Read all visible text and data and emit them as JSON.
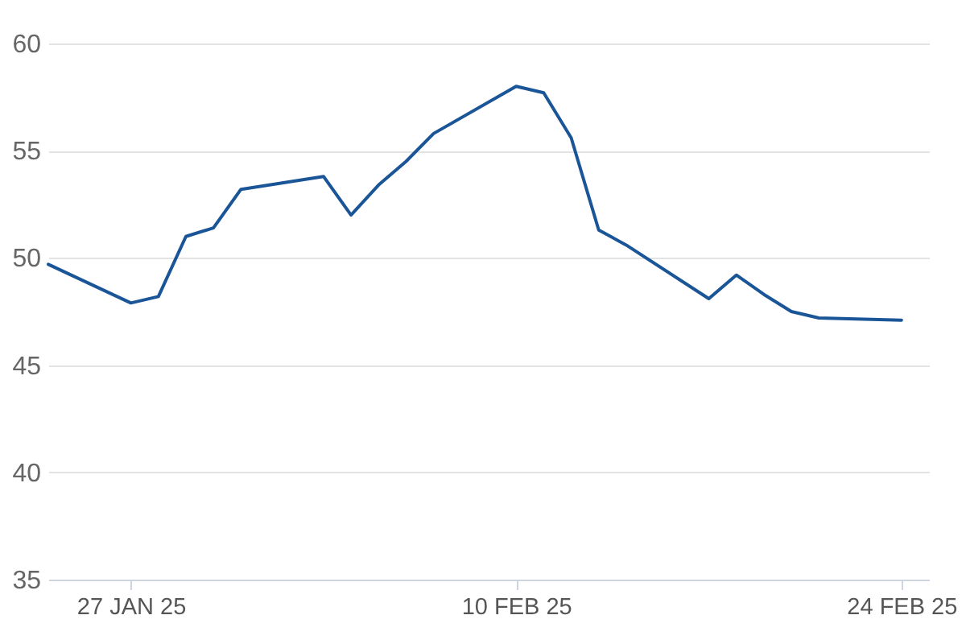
{
  "chart_data": {
    "type": "line",
    "x": [
      "2025-01-24",
      "2025-01-27",
      "2025-01-28",
      "2025-01-29",
      "2025-01-30",
      "2025-01-31",
      "2025-02-03",
      "2025-02-04",
      "2025-02-05",
      "2025-02-06",
      "2025-02-07",
      "2025-02-10",
      "2025-02-11",
      "2025-02-12",
      "2025-02-13",
      "2025-02-14",
      "2025-02-17",
      "2025-02-18",
      "2025-02-19",
      "2025-02-20",
      "2025-02-21",
      "2025-02-24"
    ],
    "series": [
      {
        "color": "#1a5597",
        "values": [
          49.7,
          47.9,
          48.2,
          51.0,
          51.4,
          53.2,
          53.8,
          52.0,
          53.4,
          54.5,
          55.8,
          58.0,
          57.7,
          55.6,
          51.3,
          50.6,
          48.1,
          49.2,
          48.3,
          47.5,
          47.2,
          47.1
        ]
      }
    ],
    "xlim": [
      "2025-01-24",
      "2025-02-25"
    ],
    "xticks": [
      {
        "value": "2025-01-27",
        "label": "27 JAN 25"
      },
      {
        "value": "2025-02-10",
        "label": "10 FEB 25"
      },
      {
        "value": "2025-02-24",
        "label": "24 FEB 25"
      }
    ],
    "ylim": [
      35,
      60
    ],
    "yticks": [
      35,
      40,
      45,
      50,
      55,
      60
    ],
    "grid": "y"
  }
}
